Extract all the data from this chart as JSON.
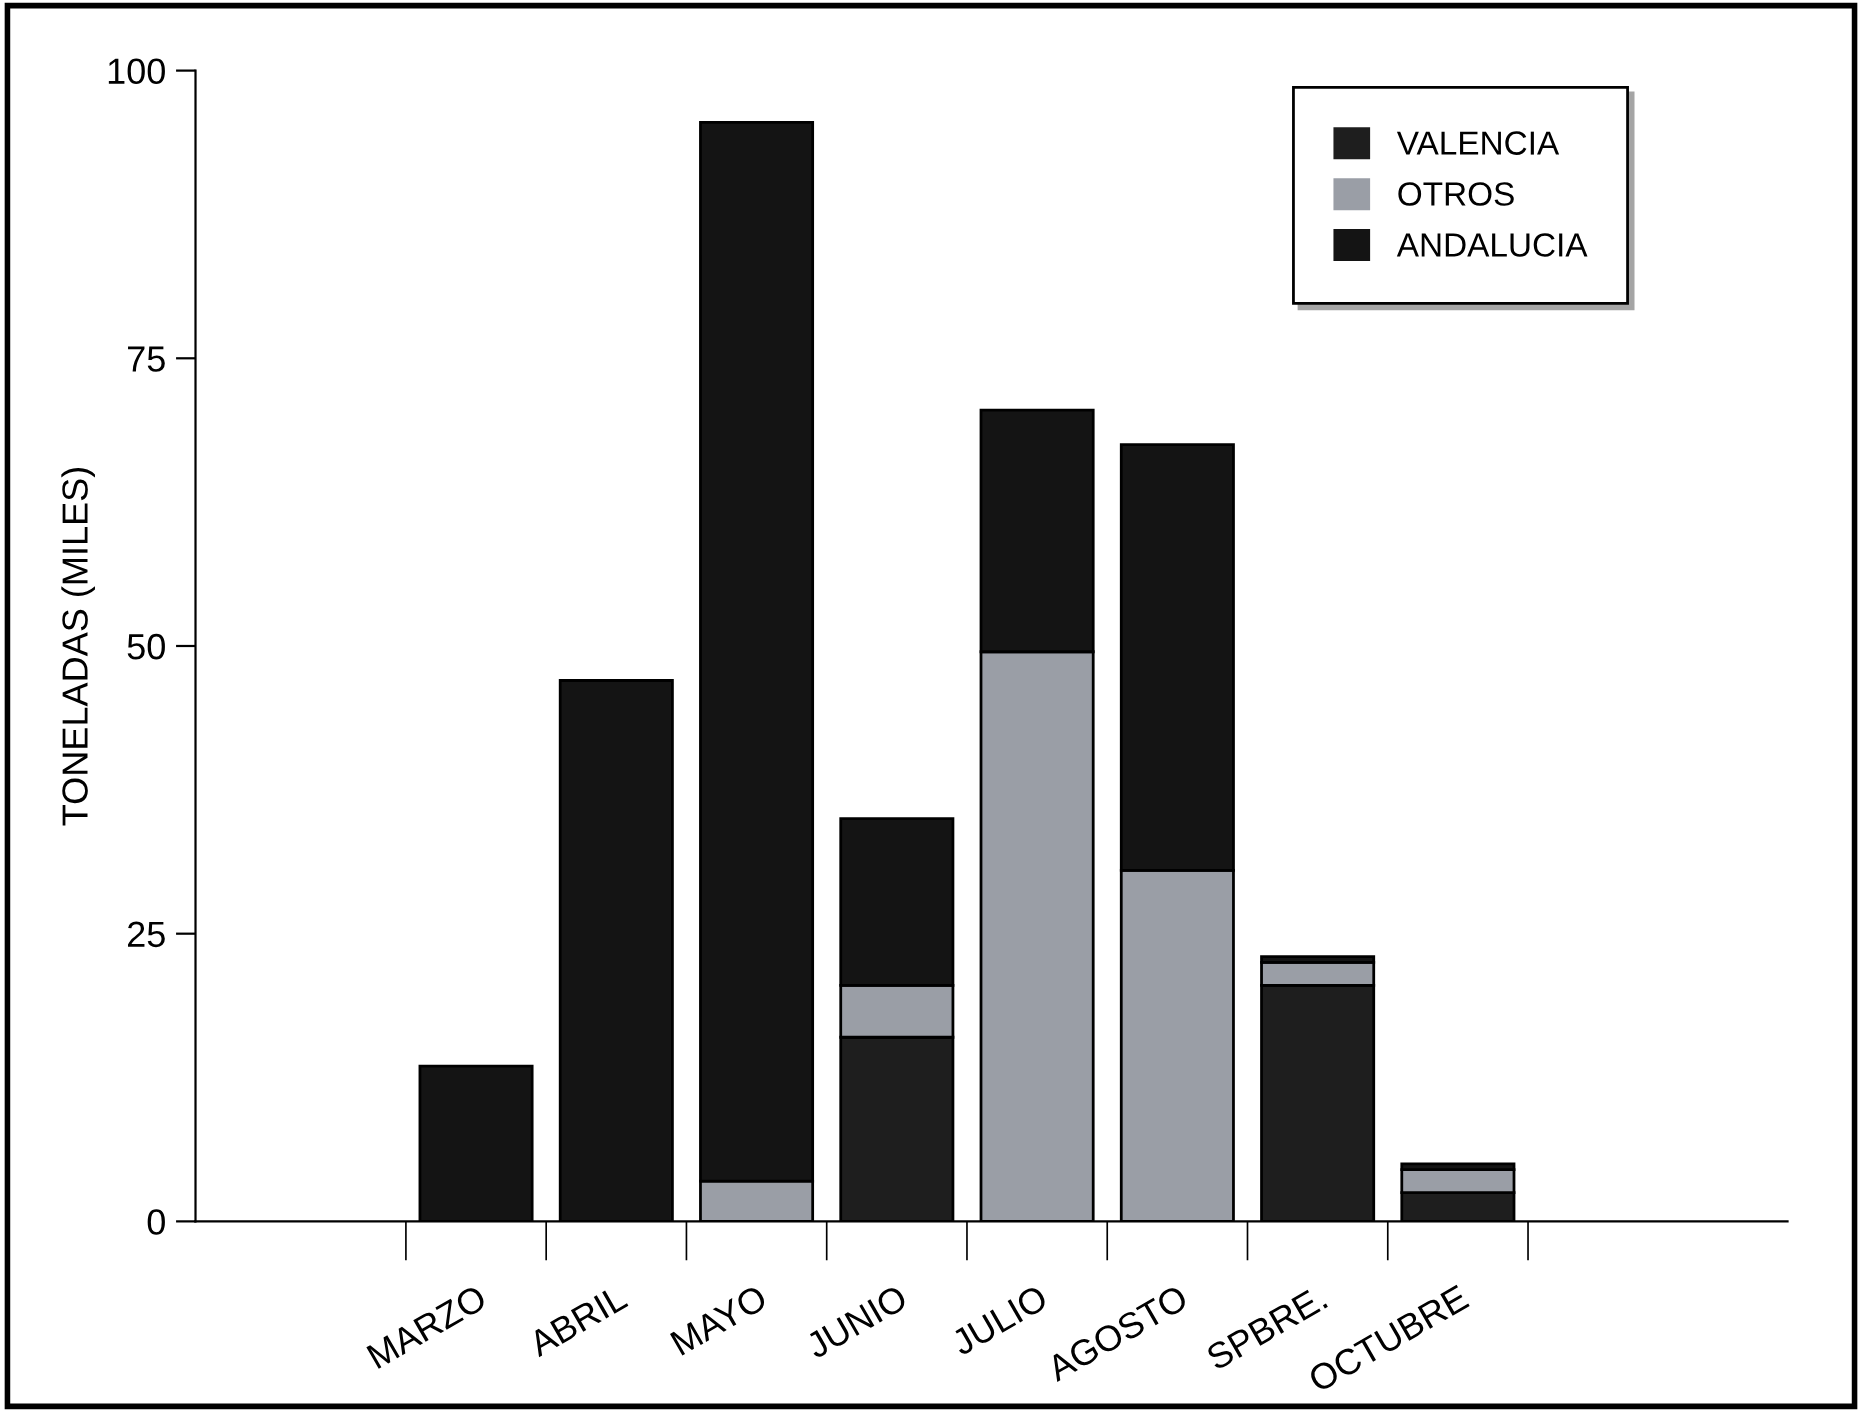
{
  "chart_data": {
    "type": "bar",
    "stacked": true,
    "ylabel": "TONELADAS (MILES)",
    "categories": [
      "MARZO",
      "ABRIL",
      "MAYO",
      "JUNIO",
      "JULIO",
      "AGOSTO",
      "SPBRE.",
      "OCTUBRE"
    ],
    "series": [
      {
        "name": "VALENCIA",
        "color": "#1e1e1e",
        "values": [
          0,
          0,
          0,
          16,
          0,
          0,
          20.5,
          2.5
        ]
      },
      {
        "name": "OTROS",
        "color": "#9a9ea6",
        "values": [
          0,
          0,
          3.5,
          4.5,
          49.5,
          30.5,
          2,
          2
        ]
      },
      {
        "name": "ANDALUCIA",
        "color": "#141414",
        "values": [
          13.5,
          47,
          92,
          14.5,
          21,
          37,
          0.5,
          0.5
        ]
      }
    ],
    "ylim": [
      0,
      100
    ],
    "yticks": [
      0,
      25,
      50,
      75,
      100
    ],
    "grid": false,
    "legend": "top right"
  }
}
